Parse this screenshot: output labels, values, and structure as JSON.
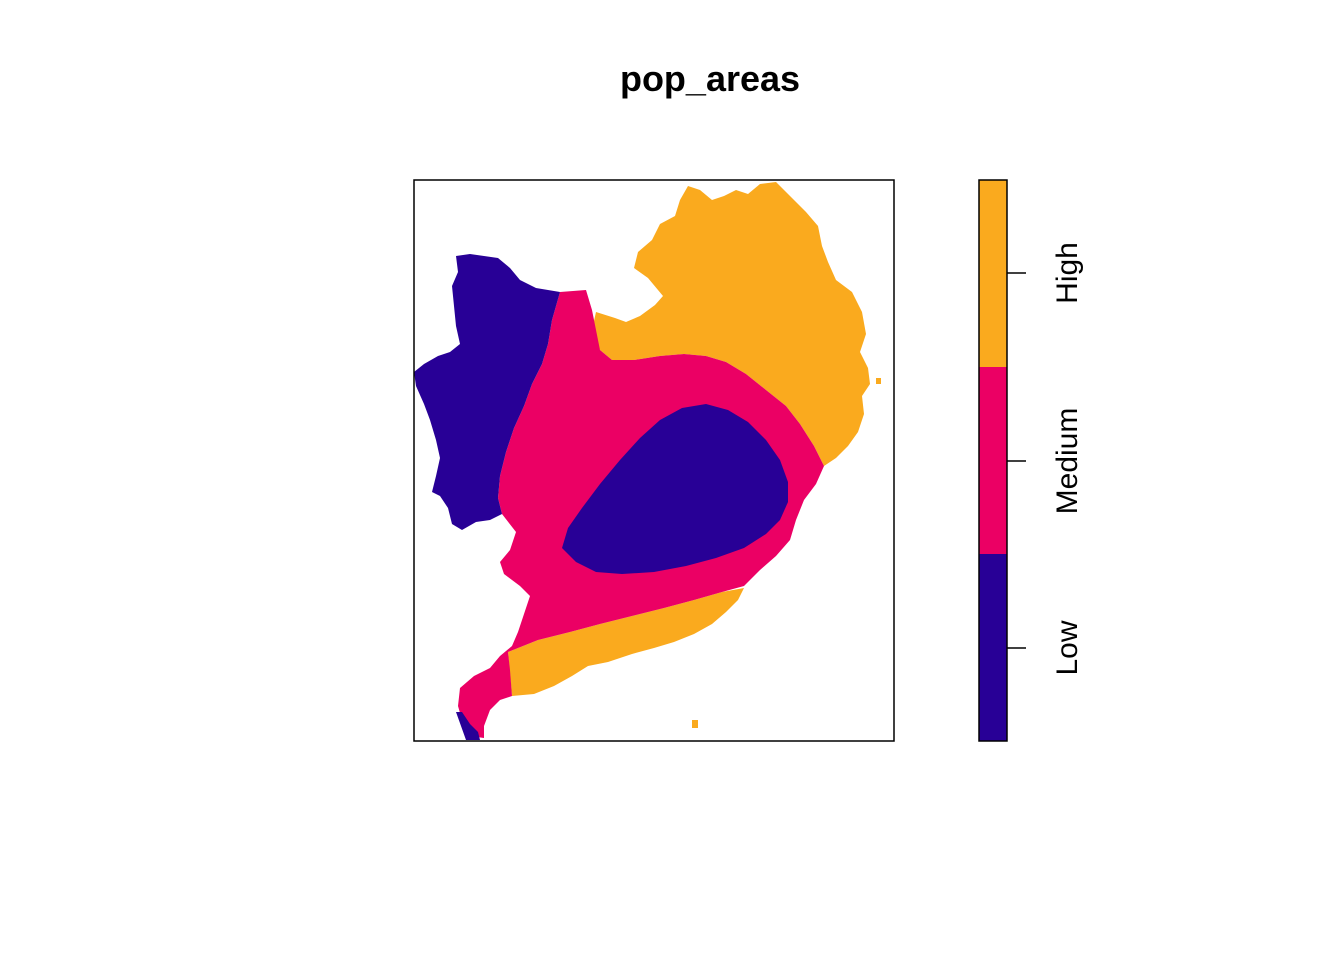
{
  "title": "pop_areas",
  "legend": {
    "classes": [
      {
        "label": "Low",
        "color": "#280096"
      },
      {
        "label": "Medium",
        "color": "#EB0064"
      },
      {
        "label": "High",
        "color": "#FAAA1E"
      }
    ]
  }
}
